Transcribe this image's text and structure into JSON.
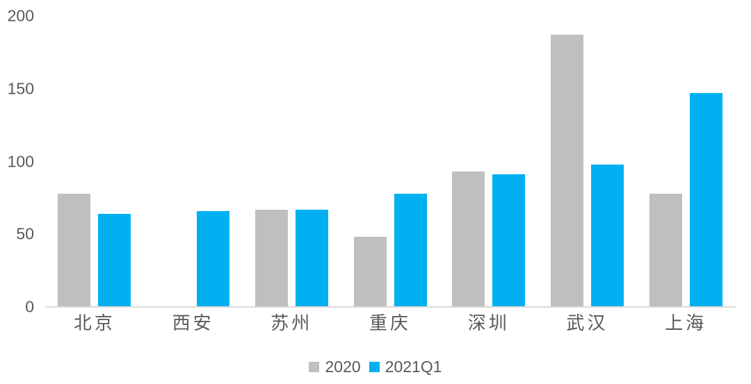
{
  "chart_data": {
    "type": "bar",
    "title": "",
    "xlabel": "",
    "ylabel": "",
    "categories": [
      "北京",
      "西安",
      "苏州",
      "重庆",
      "深圳",
      "武汉",
      "上海"
    ],
    "series": [
      {
        "name": "2020",
        "color": "#BFBFBF",
        "values": [
          78,
          null,
          67,
          48,
          93,
          187,
          78
        ]
      },
      {
        "name": "2021Q1",
        "color": "#00B0F0",
        "values": [
          64,
          66,
          67,
          78,
          91,
          98,
          147
        ]
      }
    ],
    "ylim": [
      0,
      200
    ],
    "yticks": [
      0,
      50,
      100,
      150,
      200
    ],
    "grid": false,
    "legend_position": "bottom",
    "colors": {
      "axis_line": "#D9D9D9",
      "tick_text": "#595959",
      "category_text": "#595959",
      "legend_text": "#595959",
      "background": "#FFFFFF"
    }
  }
}
